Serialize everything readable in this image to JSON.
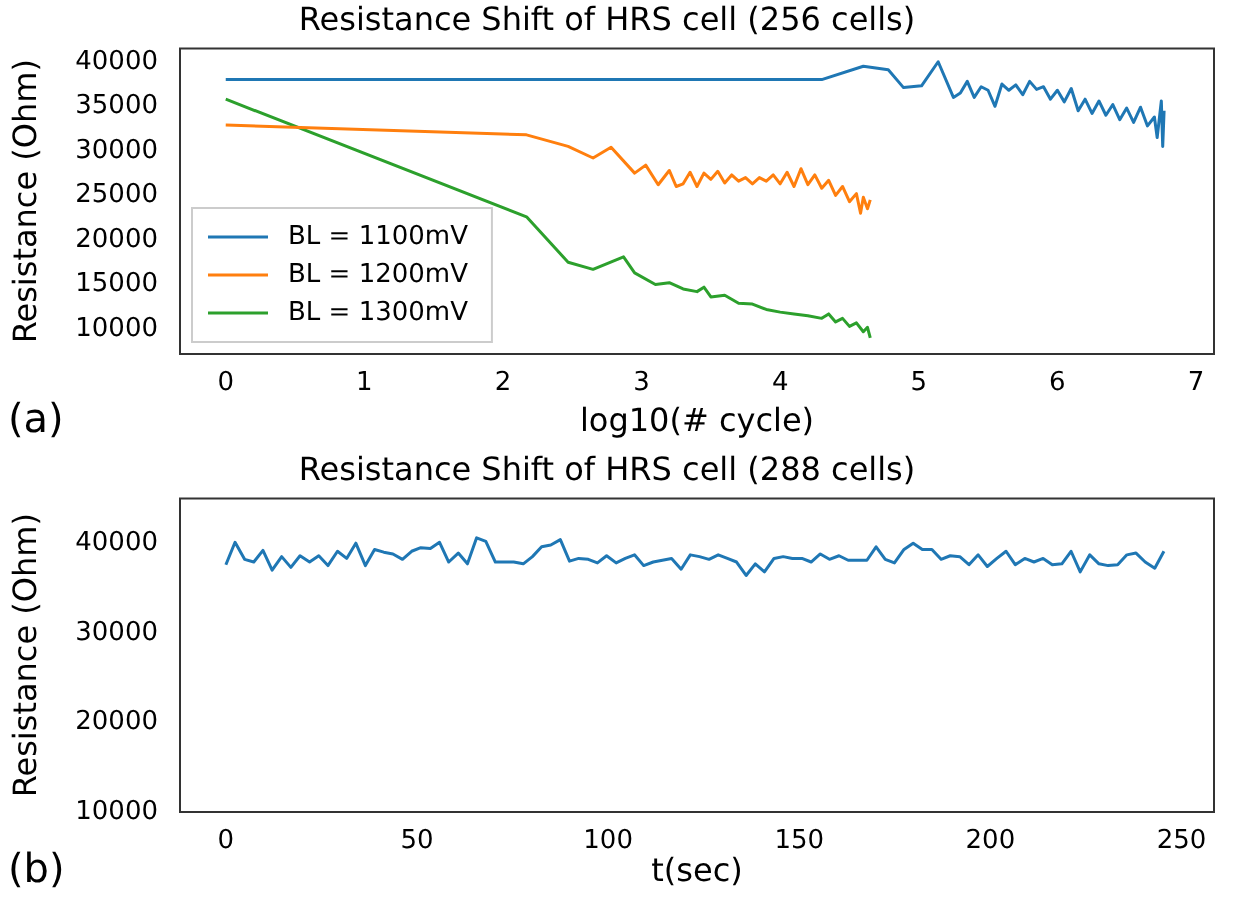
{
  "chart_data": [
    {
      "type": "line",
      "title": "Resistance Shift of HRS cell (256 cells)",
      "xlabel": "log10(# cycle)",
      "ylabel": "Resistance (Ohm)",
      "xlim": [
        -0.33,
        7.13
      ],
      "xticks": [
        0,
        1,
        2,
        3,
        4,
        5,
        6,
        7
      ],
      "ylim": [
        7200,
        41500
      ],
      "yticks": [
        10000,
        15000,
        20000,
        25000,
        30000,
        35000,
        40000
      ],
      "legend": "bottom left",
      "annotations": [
        "(a)"
      ],
      "series": [
        {
          "name": "BL = 1100mV",
          "color": "#1f77b4",
          "x": [
            0,
            4.3,
            4.6,
            4.78,
            4.89,
            5.02,
            5.14,
            5.25,
            5.3,
            5.35,
            5.4,
            5.45,
            5.5,
            5.55,
            5.6,
            5.65,
            5.7,
            5.75,
            5.8,
            5.85,
            5.9,
            5.95,
            6.0,
            6.05,
            6.1,
            6.15,
            6.2,
            6.25,
            6.3,
            6.35,
            6.4,
            6.45,
            6.5,
            6.55,
            6.6,
            6.65,
            6.7,
            6.72,
            6.75,
            6.76,
            6.77
          ],
          "values": [
            38000,
            38000,
            39500,
            39100,
            37100,
            37300,
            40000,
            36000,
            36500,
            37800,
            36000,
            37200,
            36800,
            35000,
            37500,
            36800,
            37400,
            36300,
            37800,
            36900,
            37200,
            35800,
            36800,
            35500,
            37000,
            34500,
            35800,
            34200,
            35600,
            34000,
            35200,
            33500,
            34800,
            33200,
            34900,
            32800,
            33800,
            31500,
            35600,
            30500,
            34500
          ]
        },
        {
          "name": "BL = 1200mV",
          "color": "#ff7f0e",
          "x": [
            0,
            2.17,
            2.47,
            2.65,
            2.78,
            2.95,
            3.03,
            3.12,
            3.2,
            3.25,
            3.3,
            3.35,
            3.4,
            3.45,
            3.5,
            3.55,
            3.6,
            3.65,
            3.7,
            3.75,
            3.8,
            3.85,
            3.9,
            3.95,
            4.0,
            4.05,
            4.1,
            4.15,
            4.2,
            4.25,
            4.3,
            4.35,
            4.4,
            4.45,
            4.5,
            4.55,
            4.58,
            4.6,
            4.63,
            4.65
          ],
          "values": [
            32900,
            31800,
            30500,
            29200,
            30400,
            27500,
            28400,
            26200,
            27800,
            26000,
            26300,
            27600,
            26000,
            27500,
            26800,
            27700,
            26400,
            27300,
            26600,
            27000,
            26300,
            27000,
            26600,
            27300,
            26300,
            27600,
            26000,
            28000,
            26200,
            27300,
            25800,
            26700,
            25000,
            26000,
            24300,
            25200,
            23000,
            24800,
            23500,
            24500
          ]
        },
        {
          "name": "BL = 1300mV",
          "color": "#2ca02c",
          "x": [
            0,
            2.17,
            2.47,
            2.65,
            2.87,
            2.95,
            3.1,
            3.2,
            3.3,
            3.4,
            3.45,
            3.5,
            3.6,
            3.7,
            3.8,
            3.9,
            4.0,
            4.1,
            4.2,
            4.3,
            4.35,
            4.4,
            4.45,
            4.5,
            4.55,
            4.6,
            4.63,
            4.65
          ],
          "values": [
            35800,
            22600,
            17500,
            16700,
            18100,
            16300,
            15000,
            15200,
            14500,
            14200,
            14700,
            13600,
            13800,
            12900,
            12800,
            12200,
            11900,
            11700,
            11500,
            11200,
            11700,
            10800,
            11200,
            10300,
            10700,
            9700,
            10200,
            9000
          ]
        }
      ]
    },
    {
      "type": "line",
      "title": "Resistance Shift of HRS cell (288 cells)",
      "xlabel": "t(sec)",
      "ylabel": "Resistance (Ohm)",
      "xlim": [
        -12,
        258.5
      ],
      "xticks": [
        0,
        50,
        100,
        150,
        200,
        250
      ],
      "ylim": [
        10000,
        45000
      ],
      "yticks": [
        10000,
        20000,
        30000,
        40000
      ],
      "annotations": [
        "(b)"
      ],
      "series": [
        {
          "color": "#1f77b4",
          "x": [
            0,
            2.4,
            4.9,
            7.3,
            9.7,
            12.1,
            14.6,
            17,
            19.4,
            21.9,
            24.3,
            26.7,
            29.2,
            31.6,
            34,
            36.5,
            38.9,
            41.3,
            43.7,
            46.2,
            48.6,
            51,
            53.5,
            55.9,
            58.3,
            60.8,
            63.2,
            65.6,
            68,
            70.5,
            72.9,
            75.3,
            77.8,
            80.2,
            82.6,
            85,
            87.5,
            89.9,
            92.3,
            94.8,
            97.2,
            99.6,
            102.1,
            104.5,
            106.9,
            109.3,
            111.8,
            114.2,
            116.6,
            119.1,
            121.5,
            123.9,
            126.4,
            128.8,
            131.2,
            133.6,
            136.1,
            138.5,
            140.9,
            143.4,
            145.8,
            148.2,
            150.7,
            153.1,
            155.5,
            157.9,
            160.4,
            162.8,
            165.2,
            167.7,
            170.1,
            172.5,
            174.9,
            177.4,
            179.8,
            182.2,
            184.7,
            187.1,
            189.5,
            192,
            194.4,
            196.8,
            199.2,
            201.7,
            204.1,
            206.5,
            209,
            211.4,
            213.8,
            216.2,
            218.7,
            221.1,
            223.5,
            226,
            228.4,
            230.8,
            233.3,
            235.7,
            238.1,
            240.5,
            243,
            245.4
          ],
          "values": [
            37600,
            40100,
            38200,
            37900,
            39200,
            37000,
            38500,
            37300,
            38600,
            37900,
            38600,
            37500,
            39100,
            38300,
            40000,
            37500,
            39300,
            39000,
            38800,
            38200,
            39100,
            39500,
            39400,
            40100,
            37900,
            38900,
            37700,
            40600,
            40200,
            37900,
            37900,
            37900,
            37700,
            38500,
            39600,
            39800,
            40400,
            38000,
            38300,
            38200,
            37800,
            38600,
            37800,
            38300,
            38700,
            37500,
            37900,
            38100,
            38300,
            37100,
            38700,
            38500,
            38200,
            38700,
            38300,
            37900,
            36400,
            37700,
            36800,
            38300,
            38500,
            38300,
            38300,
            37900,
            38800,
            38200,
            38600,
            38100,
            38100,
            38100,
            39600,
            38200,
            37800,
            39300,
            40000,
            39300,
            39300,
            38200,
            38600,
            38500,
            37600,
            38700,
            37400,
            38300,
            39100,
            37600,
            38300,
            37900,
            38300,
            37600,
            37700,
            39100,
            36800,
            38700,
            37700,
            37500,
            37600,
            38700,
            38900,
            37900,
            37200,
            39100
          ]
        }
      ]
    }
  ]
}
